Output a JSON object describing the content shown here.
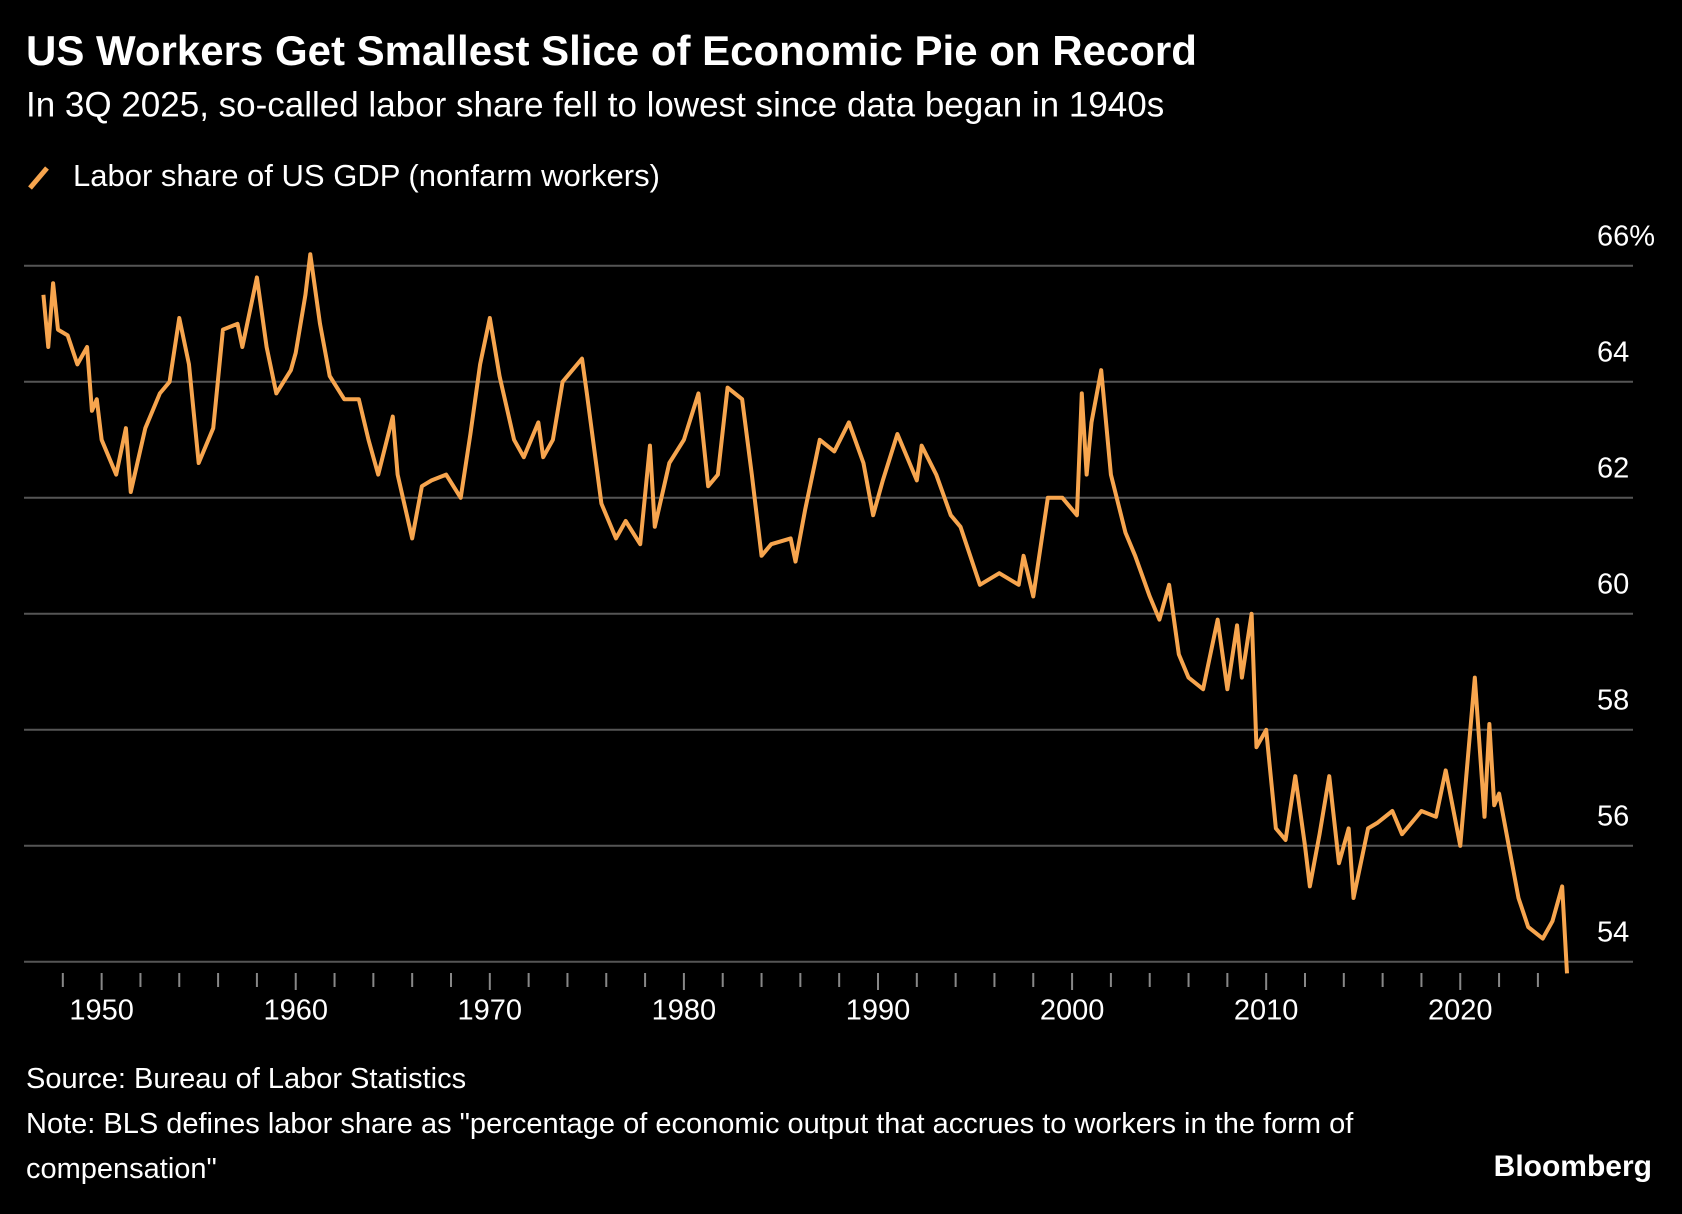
{
  "chart_data": {
    "type": "line",
    "title": "US Workers Get Smallest Slice of Economic Pie on Record",
    "subtitle": "In 3Q 2025, so-called labor share fell to lowest since data began in 1940s",
    "source": "Source: Bureau of Labor Statistics",
    "note": "Note: BLS defines labor share as \"percentage of economic output that accrues to workers in the form of compensation\"",
    "credit": "Bloomberg",
    "x": [
      1947.0,
      1947.25,
      1947.5,
      1947.75,
      1948.25,
      1948.75,
      1949.25,
      1949.5,
      1949.75,
      1950.0,
      1950.5,
      1950.75,
      1951.25,
      1951.5,
      1952.25,
      1953.0,
      1953.5,
      1954.0,
      1954.5,
      1955.0,
      1955.75,
      1956.25,
      1957.0,
      1957.25,
      1957.5,
      1958.0,
      1958.5,
      1959.0,
      1959.75,
      1960.0,
      1960.5,
      1960.75,
      1961.25,
      1961.75,
      1962.5,
      1963.25,
      1963.75,
      1964.25,
      1965.0,
      1965.25,
      1966.0,
      1966.5,
      1967.0,
      1967.75,
      1968.5,
      1969.0,
      1969.5,
      1970.0,
      1970.5,
      1971.25,
      1971.75,
      1972.5,
      1972.75,
      1973.25,
      1973.75,
      1974.75,
      1975.0,
      1975.75,
      1976.5,
      1977.0,
      1977.75,
      1978.25,
      1978.5,
      1979.25,
      1980.0,
      1980.75,
      1981.25,
      1981.75,
      1982.25,
      1983.0,
      1983.5,
      1984.0,
      1984.5,
      1985.5,
      1985.75,
      1986.25,
      1987.0,
      1987.75,
      1988.5,
      1989.25,
      1989.75,
      1990.25,
      1991.0,
      1992.0,
      1992.25,
      1993.0,
      1993.75,
      1994.25,
      1994.75,
      1995.25,
      1996.25,
      1997.25,
      1997.5,
      1998.0,
      1998.75,
      1999.5,
      2000.25,
      2000.5,
      2000.75,
      2001.0,
      2001.5,
      2002.0,
      2002.75,
      2003.25,
      2004.0,
      2004.5,
      2005.0,
      2005.5,
      2006.0,
      2006.75,
      2007.0,
      2007.5,
      2008.0,
      2008.5,
      2008.75,
      2009.25,
      2009.5,
      2010.0,
      2010.5,
      2011.0,
      2011.5,
      2012.0,
      2012.25,
      2012.75,
      2013.25,
      2013.75,
      2014.25,
      2014.5,
      2015.25,
      2015.75,
      2016.5,
      2017.0,
      2018.0,
      2018.75,
      2019.25,
      2020.0,
      2020.75,
      2021.25,
      2021.5,
      2021.75,
      2022.0,
      2022.5,
      2023.0,
      2023.5,
      2024.25,
      2024.75,
      2025.25,
      2025.5
    ],
    "series": [
      {
        "name": "Labor share of US GDP (nonfarm workers)",
        "color": "#f7a54e",
        "values": [
          65.5,
          64.6,
          65.7,
          64.9,
          64.8,
          64.3,
          64.6,
          63.5,
          63.7,
          63.0,
          62.6,
          62.4,
          63.2,
          62.1,
          63.2,
          63.8,
          64.0,
          65.1,
          64.3,
          62.6,
          63.2,
          64.9,
          65.0,
          64.6,
          65.0,
          65.8,
          64.6,
          63.8,
          64.2,
          64.5,
          65.5,
          66.2,
          65.0,
          64.1,
          63.7,
          63.7,
          63.0,
          62.4,
          63.4,
          62.4,
          61.3,
          62.2,
          62.3,
          62.4,
          62.0,
          63.1,
          64.3,
          65.1,
          64.1,
          63.0,
          62.7,
          63.3,
          62.7,
          63.0,
          64.0,
          64.4,
          63.8,
          61.9,
          61.3,
          61.6,
          61.2,
          62.9,
          61.5,
          62.6,
          63.0,
          63.8,
          62.2,
          62.4,
          63.9,
          63.7,
          62.4,
          61.0,
          61.2,
          61.3,
          60.9,
          61.8,
          63.0,
          62.8,
          63.3,
          62.6,
          61.7,
          62.3,
          63.1,
          62.3,
          62.9,
          62.4,
          61.7,
          61.5,
          61.0,
          60.5,
          60.7,
          60.5,
          61.0,
          60.3,
          62.0,
          62.0,
          61.7,
          63.8,
          62.4,
          63.3,
          64.2,
          62.4,
          61.4,
          61.0,
          60.3,
          59.9,
          60.5,
          59.3,
          58.9,
          58.7,
          59.1,
          59.9,
          58.7,
          59.8,
          58.9,
          60.0,
          57.7,
          58.0,
          56.3,
          56.1,
          57.2,
          56.0,
          55.3,
          56.2,
          57.2,
          55.7,
          56.3,
          55.1,
          56.3,
          56.4,
          56.6,
          56.2,
          56.6,
          56.5,
          57.3,
          56.0,
          58.9,
          56.5,
          58.1,
          56.7,
          56.9,
          56.0,
          55.1,
          54.6,
          54.4,
          54.7,
          55.3,
          53.8
        ]
      }
    ],
    "xlim": [
      1946,
      2028.9
    ],
    "ylim": [
      53.6,
      66.6
    ],
    "xticks": [
      1950,
      1960,
      1970,
      1980,
      1990,
      2000,
      2010,
      2020
    ],
    "xminorticks": [
      1948,
      1952,
      1954,
      1956,
      1958,
      1962,
      1964,
      1966,
      1968,
      1972,
      1974,
      1976,
      1978,
      1982,
      1984,
      1986,
      1988,
      1992,
      1994,
      1996,
      1998,
      2002,
      2004,
      2006,
      2008,
      2012,
      2014,
      2016,
      2018,
      2022,
      2024
    ],
    "yticks": [
      {
        "value": 66,
        "label": "66%"
      },
      64,
      62,
      60,
      58,
      56,
      54
    ],
    "grid": true
  }
}
